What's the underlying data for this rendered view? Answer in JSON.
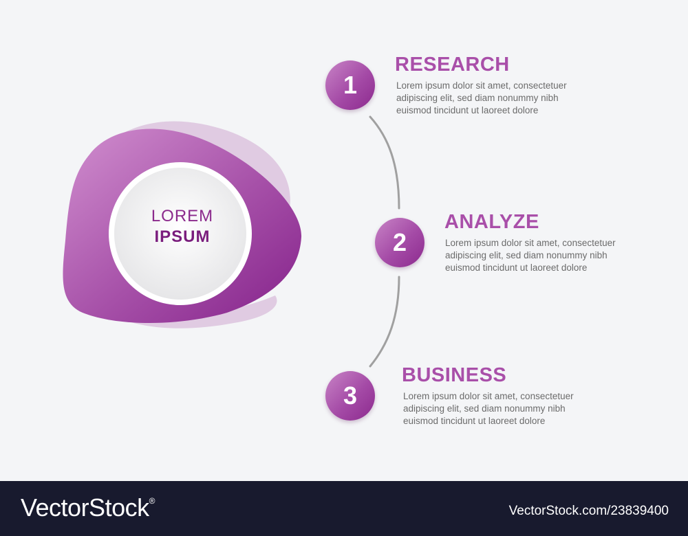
{
  "center": {
    "line1": "LOREM",
    "line2": "IPSUM"
  },
  "steps": [
    {
      "number": "1",
      "title": "RESEARCH",
      "lines": [
        "Lorem ipsum dolor sit amet, consectetuer",
        "adipiscing elit, sed diam nonummy nibh",
        "euismod tincidunt ut laoreet dolore"
      ]
    },
    {
      "number": "2",
      "title": "ANALYZE",
      "lines": [
        "Lorem ipsum dolor sit amet, consectetuer",
        "adipiscing elit, sed diam nonummy nibh",
        "euismod tincidunt ut laoreet dolore"
      ]
    },
    {
      "number": "3",
      "title": "BUSINESS",
      "lines": [
        "Lorem ipsum dolor sit amet, consectetuer",
        "adipiscing elit, sed diam nonummy nibh",
        "euismod tincidunt ut laoreet dolore"
      ]
    }
  ],
  "footer": {
    "brand": "VectorStock",
    "registered": "®",
    "image_id": "VectorStock.com/23839400"
  },
  "colors": {
    "accent": "#a94fa9",
    "accent_dark": "#8c2a8e",
    "connector": "#a0a0a0",
    "footer_bg": "#181a2e",
    "background": "#f4f5f7"
  }
}
